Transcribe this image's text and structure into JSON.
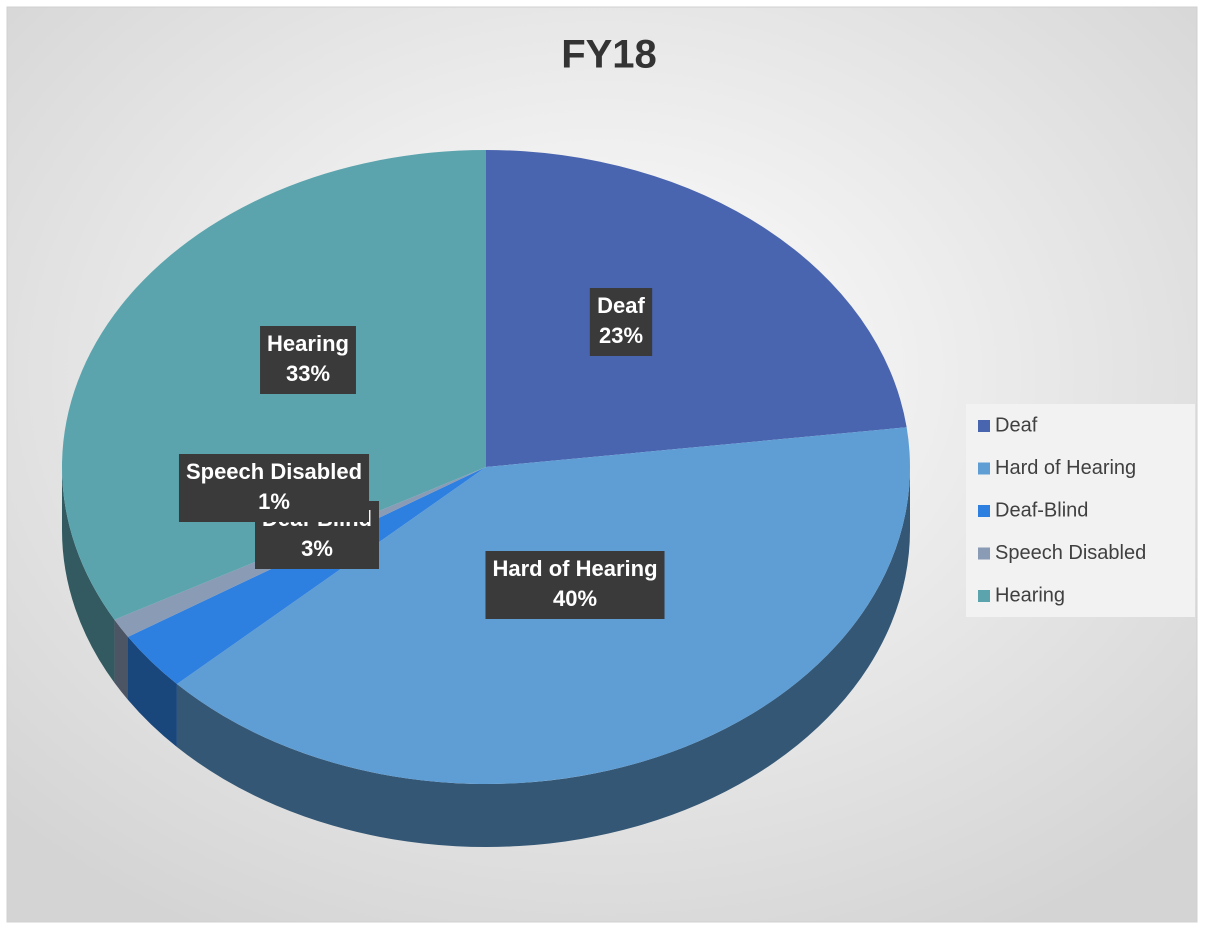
{
  "chart_data": {
    "type": "pie",
    "title": "FY18",
    "categories": [
      "Deaf",
      "Hard of Hearing",
      "Deaf-Blind",
      "Speech Disabled",
      "Hearing"
    ],
    "values": [
      23,
      40,
      3,
      1,
      33
    ],
    "value_labels": [
      "23%",
      "40%",
      "3%",
      "1%",
      "33%"
    ],
    "colors": [
      "#4a65b0",
      "#5f9ed5",
      "#2e80e0",
      "#8a9bb5",
      "#5ba4ae"
    ],
    "legend": "right"
  }
}
